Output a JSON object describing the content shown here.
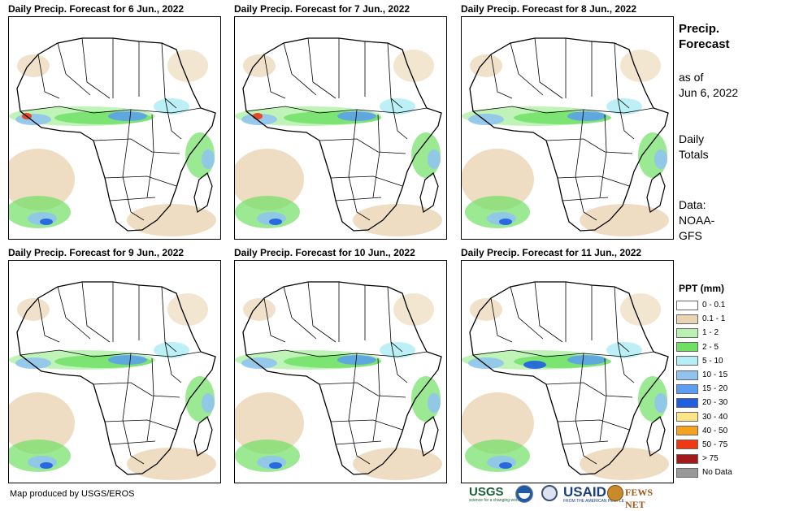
{
  "panels": [
    {
      "title": "Daily Precip. Forecast for 6 Jun., 2022"
    },
    {
      "title": "Daily Precip. Forecast for 7 Jun., 2022"
    },
    {
      "title": "Daily Precip. Forecast for 8 Jun., 2022"
    },
    {
      "title": "Daily Precip. Forecast for 9 Jun., 2022"
    },
    {
      "title": "Daily Precip. Forecast for 10 Jun., 2022"
    },
    {
      "title": "Daily Precip. Forecast for 11 Jun., 2022"
    }
  ],
  "sidebar": {
    "title_line1": "Precip.",
    "title_line2": "Forecast",
    "asof_line1": "as of",
    "asof_line2": "Jun 6, 2022",
    "totals_line1": "Daily",
    "totals_line2": "Totals",
    "data_line1": "Data:",
    "data_line2": "NOAA-",
    "data_line3": "GFS"
  },
  "legend": {
    "title": "PPT (mm)",
    "items": [
      {
        "label": "0 - 0.1",
        "color": "#ffffff"
      },
      {
        "label": "0.1 - 1",
        "color": "#ead5b3"
      },
      {
        "label": "1 - 2",
        "color": "#b9f2b0"
      },
      {
        "label": "2 - 5",
        "color": "#70e065"
      },
      {
        "label": "5 - 10",
        "color": "#b5eef5"
      },
      {
        "label": "10 - 15",
        "color": "#8fc4f0"
      },
      {
        "label": "15 - 20",
        "color": "#5b9df0"
      },
      {
        "label": "20 - 30",
        "color": "#1f5fe0"
      },
      {
        "label": "30 - 40",
        "color": "#fbe58a"
      },
      {
        "label": "40 - 50",
        "color": "#f5a21f"
      },
      {
        "label": "50 - 75",
        "color": "#ee3a13"
      },
      {
        "label": "> 75",
        "color": "#a31a1a"
      },
      {
        "label": "No Data",
        "color": "#999999"
      }
    ]
  },
  "footer": {
    "credit": "Map produced by USGS/EROS",
    "logo_usgs": "USGS",
    "logo_usgs_tagline": "science for a changing world",
    "logo_usaid": "USAID",
    "logo_usaid_tagline": "FROM THE AMERICAN PEOPLE",
    "logo_fews": "FEWS NET"
  },
  "colors": {
    "border": "#000000",
    "tan": "#ead5b3",
    "lightgreen": "#b9f2b0",
    "green": "#70e065",
    "cyan": "#b5eef5",
    "lightblue": "#8fc4f0",
    "blue": "#5b9df0",
    "darkblue": "#1f5fe0",
    "red": "#ee3a13"
  }
}
